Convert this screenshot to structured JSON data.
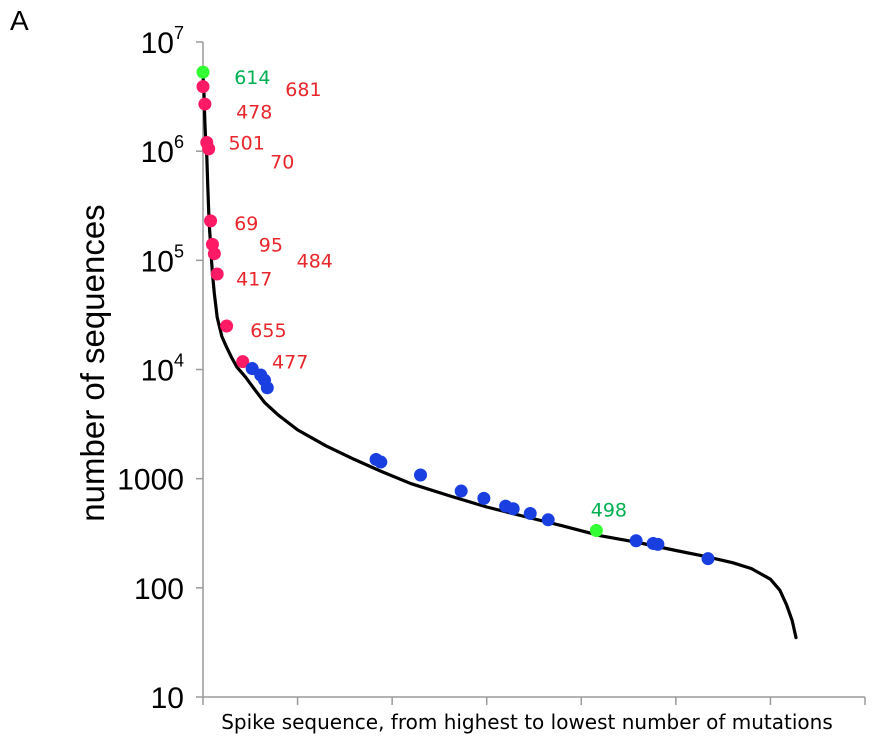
{
  "chart_data": {
    "type": "line",
    "panel_label": "A",
    "title": "",
    "xlabel": "Spike sequence, from highest to lowest number of mutations",
    "ylabel": "number of sequences",
    "y_scale": "log",
    "ylim": [
      10,
      10000000
    ],
    "xlim": [
      0,
      700
    ],
    "grid": false,
    "legend": "none",
    "y_ticks": [
      {
        "value": 10,
        "base": "10",
        "exp": ""
      },
      {
        "value": 100,
        "base": "100",
        "exp": ""
      },
      {
        "value": 1000,
        "base": "1000",
        "exp": ""
      },
      {
        "value": 10000,
        "base": "10",
        "exp": "4"
      },
      {
        "value": 100000,
        "base": "10",
        "exp": "5"
      },
      {
        "value": 1000000,
        "base": "10",
        "exp": "6"
      },
      {
        "value": 10000000,
        "base": "10",
        "exp": "7"
      }
    ],
    "x_tick_positions": [
      0,
      100,
      200,
      300,
      400,
      500,
      600,
      700
    ],
    "curve": {
      "x": [
        0,
        1,
        2,
        3,
        4,
        5,
        6,
        7,
        8,
        9,
        10,
        12,
        15,
        20,
        25,
        30,
        36,
        45,
        55,
        65,
        80,
        100,
        130,
        160,
        190,
        220,
        260,
        300,
        340,
        380,
        420,
        460,
        500,
        530,
        560,
        580,
        600,
        610,
        617,
        623,
        627
      ],
      "y": [
        5000000,
        3500000,
        1800000,
        1200000,
        900000,
        500000,
        280000,
        190000,
        140000,
        100000,
        75000,
        50000,
        30000,
        20000,
        16000,
        13000,
        10500,
        8500,
        6500,
        5000,
        3800,
        2800,
        2000,
        1500,
        1150,
        900,
        700,
        550,
        450,
        370,
        300,
        260,
        220,
        195,
        170,
        150,
        120,
        95,
        70,
        50,
        35
      ]
    },
    "colors": {
      "green": "#33ff33",
      "red": "#ff1a66",
      "blue": "#1a3fe0",
      "label_red": "#e8262b",
      "label_green": "#00b050",
      "curve": "#000000"
    },
    "highlighted": [
      {
        "x": 0,
        "y": 5300000,
        "color": "green"
      },
      {
        "x": 0,
        "y": 3900000,
        "color": "red"
      },
      {
        "x": 2,
        "y": 2700000,
        "color": "red"
      },
      {
        "x": 4,
        "y": 1200000,
        "color": "red"
      },
      {
        "x": 6,
        "y": 1050000,
        "color": "red"
      },
      {
        "x": 8,
        "y": 230000,
        "color": "red"
      },
      {
        "x": 10,
        "y": 140000,
        "color": "red"
      },
      {
        "x": 12,
        "y": 115000,
        "color": "red"
      },
      {
        "x": 15,
        "y": 75000,
        "color": "red"
      },
      {
        "x": 25,
        "y": 25000,
        "color": "red"
      },
      {
        "x": 42,
        "y": 11800,
        "color": "red"
      },
      {
        "x": 52,
        "y": 10200,
        "color": "blue"
      },
      {
        "x": 61,
        "y": 8900,
        "color": "blue"
      },
      {
        "x": 65,
        "y": 8000,
        "color": "blue"
      },
      {
        "x": 68,
        "y": 6800,
        "color": "blue"
      },
      {
        "x": 183,
        "y": 1500,
        "color": "blue"
      },
      {
        "x": 188,
        "y": 1420,
        "color": "blue"
      },
      {
        "x": 230,
        "y": 1080,
        "color": "blue"
      },
      {
        "x": 273,
        "y": 770,
        "color": "blue"
      },
      {
        "x": 297,
        "y": 660,
        "color": "blue"
      },
      {
        "x": 320,
        "y": 560,
        "color": "blue"
      },
      {
        "x": 328,
        "y": 530,
        "color": "blue"
      },
      {
        "x": 346,
        "y": 480,
        "color": "blue"
      },
      {
        "x": 365,
        "y": 420,
        "color": "blue"
      },
      {
        "x": 416,
        "y": 335,
        "color": "green"
      },
      {
        "x": 458,
        "y": 270,
        "color": "blue"
      },
      {
        "x": 476,
        "y": 255,
        "color": "blue"
      },
      {
        "x": 481,
        "y": 250,
        "color": "blue"
      },
      {
        "x": 534,
        "y": 185,
        "color": "blue"
      }
    ],
    "annotations": [
      {
        "text": "614",
        "x": 33,
        "y": 4800000,
        "color": "label_green"
      },
      {
        "text": "681",
        "x": 87,
        "y": 3700000,
        "color": "label_red"
      },
      {
        "text": "478",
        "x": 35,
        "y": 2300000,
        "color": "label_red"
      },
      {
        "text": "501",
        "x": 27,
        "y": 1200000,
        "color": "label_red"
      },
      {
        "text": "70",
        "x": 71,
        "y": 800000,
        "color": "label_red"
      },
      {
        "text": "69",
        "x": 33,
        "y": 220000,
        "color": "label_red"
      },
      {
        "text": "95",
        "x": 59,
        "y": 140000,
        "color": "label_red"
      },
      {
        "text": "484",
        "x": 99,
        "y": 100000,
        "color": "label_red"
      },
      {
        "text": "417",
        "x": 35,
        "y": 68000,
        "color": "label_red"
      },
      {
        "text": "655",
        "x": 50,
        "y": 23000,
        "color": "label_red"
      },
      {
        "text": "477",
        "x": 73,
        "y": 11800,
        "color": "label_red"
      },
      {
        "text": "498",
        "x": 410,
        "y": 520,
        "color": "label_green"
      }
    ]
  }
}
